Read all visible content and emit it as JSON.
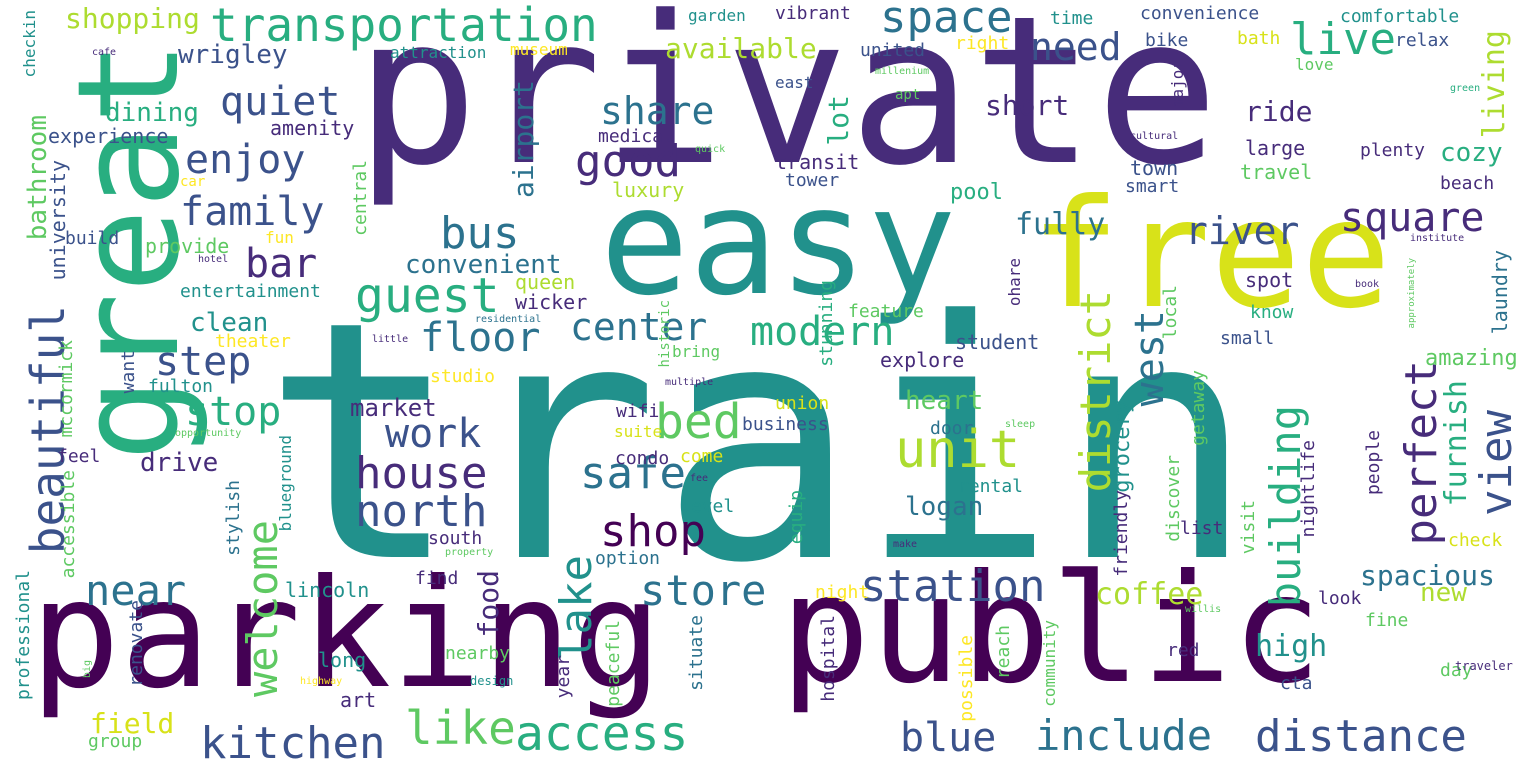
{
  "palette": {
    "dark_purple": "#440154",
    "indigo": "#472c7a",
    "slate_blue": "#3b528b",
    "steel_blue": "#2c728e",
    "teal": "#21918c",
    "green_teal": "#28ae80",
    "green": "#5ec962",
    "lime": "#addc30",
    "yellow": "#fde725"
  },
  "words": [
    {
      "text": "train"
    },
    {
      "text": "private"
    },
    {
      "text": "easy"
    },
    {
      "text": "free"
    },
    {
      "text": "great"
    },
    {
      "text": "parking"
    },
    {
      "text": "public"
    },
    {
      "text": "transportation"
    },
    {
      "text": "space"
    },
    {
      "text": "live"
    },
    {
      "text": "need"
    },
    {
      "text": "quiet"
    },
    {
      "text": "enjoy"
    },
    {
      "text": "family"
    },
    {
      "text": "bar"
    },
    {
      "text": "guest"
    },
    {
      "text": "bus"
    },
    {
      "text": "good"
    },
    {
      "text": "share"
    },
    {
      "text": "center"
    },
    {
      "text": "floor"
    },
    {
      "text": "modern"
    },
    {
      "text": "square"
    },
    {
      "text": "river"
    },
    {
      "text": "step"
    },
    {
      "text": "stop"
    },
    {
      "text": "work"
    },
    {
      "text": "house"
    },
    {
      "text": "north"
    },
    {
      "text": "safe"
    },
    {
      "text": "shop"
    },
    {
      "text": "bed"
    },
    {
      "text": "unit"
    },
    {
      "text": "perfect"
    },
    {
      "text": "view"
    },
    {
      "text": "beautiful"
    },
    {
      "text": "welcome"
    },
    {
      "text": "near"
    },
    {
      "text": "kitchen"
    },
    {
      "text": "like"
    },
    {
      "text": "access"
    },
    {
      "text": "store"
    },
    {
      "text": "station"
    },
    {
      "text": "blue"
    },
    {
      "text": "include"
    },
    {
      "text": "distance"
    },
    {
      "text": "building"
    },
    {
      "text": "district"
    },
    {
      "text": "west"
    },
    {
      "text": "lake"
    },
    {
      "text": "spacious"
    },
    {
      "text": "coffee"
    },
    {
      "text": "high"
    },
    {
      "text": "cozy"
    },
    {
      "text": "furnish"
    },
    {
      "text": "living"
    },
    {
      "text": "shopping"
    },
    {
      "text": "wrigley"
    },
    {
      "text": "dining"
    },
    {
      "text": "available"
    },
    {
      "text": "airport"
    },
    {
      "text": "lot"
    },
    {
      "text": "short"
    },
    {
      "text": "ride"
    },
    {
      "text": "large"
    },
    {
      "text": "travel"
    },
    {
      "text": "convenient"
    },
    {
      "text": "clean"
    },
    {
      "text": "market"
    },
    {
      "text": "drive"
    },
    {
      "text": "heart"
    },
    {
      "text": "logan"
    },
    {
      "text": "fully"
    },
    {
      "text": "bathroom"
    },
    {
      "text": "food"
    },
    {
      "text": "field"
    },
    {
      "text": "new"
    },
    {
      "text": "amazing"
    },
    {
      "text": "laundry"
    },
    {
      "text": "experience"
    },
    {
      "text": "amenity"
    },
    {
      "text": "medical"
    },
    {
      "text": "transit"
    },
    {
      "text": "tower"
    },
    {
      "text": "town"
    },
    {
      "text": "smart"
    },
    {
      "text": "plenty"
    },
    {
      "text": "beach"
    },
    {
      "text": "luxury"
    },
    {
      "text": "pool"
    },
    {
      "text": "provide"
    },
    {
      "text": "entertainment"
    },
    {
      "text": "queen"
    },
    {
      "text": "wicker"
    },
    {
      "text": "explore"
    },
    {
      "text": "student"
    },
    {
      "text": "theater"
    },
    {
      "text": "university"
    },
    {
      "text": "central"
    },
    {
      "text": "build"
    },
    {
      "text": "checkin"
    },
    {
      "text": "garden"
    },
    {
      "text": "vibrant"
    },
    {
      "text": "time"
    },
    {
      "text": "convenience"
    },
    {
      "text": "comfortable"
    },
    {
      "text": "attraction"
    },
    {
      "text": "museum"
    },
    {
      "text": "united"
    },
    {
      "text": "right"
    },
    {
      "text": "bike"
    },
    {
      "text": "bath"
    },
    {
      "text": "relax"
    },
    {
      "text": "love"
    },
    {
      "text": "east"
    },
    {
      "text": "major"
    },
    {
      "text": "apt"
    },
    {
      "text": "millenium"
    },
    {
      "text": "green"
    },
    {
      "text": "cafe"
    },
    {
      "text": "cultural"
    },
    {
      "text": "quick"
    },
    {
      "text": "car"
    },
    {
      "text": "fun"
    },
    {
      "text": "hotel"
    },
    {
      "text": "institute"
    },
    {
      "text": "approximately"
    },
    {
      "text": "book"
    },
    {
      "text": "ohare"
    },
    {
      "text": "historic"
    },
    {
      "text": "stunning"
    },
    {
      "text": "feature"
    },
    {
      "text": "local"
    },
    {
      "text": "spot"
    },
    {
      "text": "know"
    },
    {
      "text": "small"
    },
    {
      "text": "residential"
    },
    {
      "text": "little"
    },
    {
      "text": "bring"
    },
    {
      "text": "studio"
    },
    {
      "text": "multiple"
    },
    {
      "text": "mccormick"
    },
    {
      "text": "fulton"
    },
    {
      "text": "want"
    },
    {
      "text": "opportunity"
    },
    {
      "text": "union"
    },
    {
      "text": "business"
    },
    {
      "text": "wifi"
    },
    {
      "text": "suite"
    },
    {
      "text": "sleep"
    },
    {
      "text": "door"
    },
    {
      "text": "getaway"
    },
    {
      "text": "grocery"
    },
    {
      "text": "feel"
    },
    {
      "text": "accessible"
    },
    {
      "text": "stylish"
    },
    {
      "text": "blueground"
    },
    {
      "text": "condo"
    },
    {
      "text": "come"
    },
    {
      "text": "fee"
    },
    {
      "text": "level"
    },
    {
      "text": "equip"
    },
    {
      "text": "rental"
    },
    {
      "text": "friendly"
    },
    {
      "text": "discover"
    },
    {
      "text": "nightlife"
    },
    {
      "text": "visit"
    },
    {
      "text": "people"
    },
    {
      "text": "list"
    },
    {
      "text": "check"
    },
    {
      "text": "south"
    },
    {
      "text": "property"
    },
    {
      "text": "option"
    },
    {
      "text": "make"
    },
    {
      "text": "lincoln"
    },
    {
      "text": "find"
    },
    {
      "text": "night"
    },
    {
      "text": "look"
    },
    {
      "text": "willis"
    },
    {
      "text": "fine"
    },
    {
      "text": "professional"
    },
    {
      "text": "renovate"
    },
    {
      "text": "long"
    },
    {
      "text": "nearby"
    },
    {
      "text": "year"
    },
    {
      "text": "peaceful"
    },
    {
      "text": "situate"
    },
    {
      "text": "hospital"
    },
    {
      "text": "possible"
    },
    {
      "text": "reach"
    },
    {
      "text": "community"
    },
    {
      "text": "red"
    },
    {
      "text": "cta"
    },
    {
      "text": "day"
    },
    {
      "text": "traveler"
    },
    {
      "text": "big"
    },
    {
      "text": "highway"
    },
    {
      "text": "design"
    },
    {
      "text": "art"
    },
    {
      "text": "group"
    }
  ]
}
